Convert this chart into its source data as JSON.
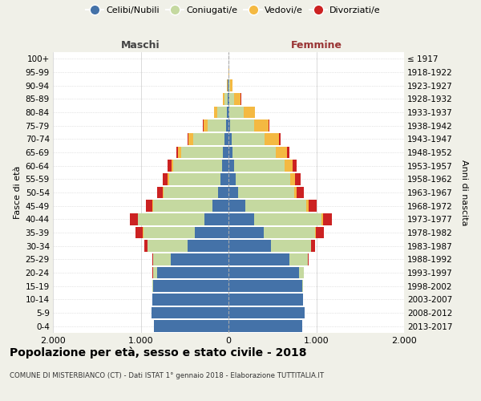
{
  "age_groups": [
    "0-4",
    "5-9",
    "10-14",
    "15-19",
    "20-24",
    "25-29",
    "30-34",
    "35-39",
    "40-44",
    "45-49",
    "50-54",
    "55-59",
    "60-64",
    "65-69",
    "70-74",
    "75-79",
    "80-84",
    "85-89",
    "90-94",
    "95-99",
    "100+"
  ],
  "birth_years": [
    "2013-2017",
    "2008-2012",
    "2003-2007",
    "1998-2002",
    "1993-1997",
    "1988-1992",
    "1983-1987",
    "1978-1982",
    "1973-1977",
    "1968-1972",
    "1963-1967",
    "1958-1962",
    "1953-1957",
    "1948-1952",
    "1943-1947",
    "1938-1942",
    "1933-1937",
    "1928-1932",
    "1923-1927",
    "1918-1922",
    "≤ 1917"
  ],
  "maschi": {
    "celibi": [
      850,
      880,
      870,
      860,
      810,
      660,
      470,
      380,
      270,
      180,
      120,
      90,
      70,
      60,
      50,
      25,
      15,
      8,
      5,
      1,
      0
    ],
    "coniugati": [
      0,
      0,
      0,
      5,
      50,
      200,
      450,
      590,
      760,
      680,
      620,
      590,
      560,
      480,
      350,
      210,
      110,
      40,
      8,
      2,
      0
    ],
    "vedovi": [
      0,
      0,
      0,
      0,
      2,
      2,
      3,
      5,
      5,
      5,
      5,
      10,
      20,
      35,
      55,
      45,
      35,
      18,
      5,
      0,
      0
    ],
    "divorziati": [
      0,
      0,
      0,
      0,
      5,
      10,
      40,
      80,
      90,
      80,
      70,
      60,
      40,
      20,
      15,
      10,
      5,
      0,
      0,
      0,
      0
    ]
  },
  "femmine": {
    "nubili": [
      840,
      870,
      850,
      840,
      800,
      690,
      480,
      400,
      290,
      190,
      110,
      80,
      60,
      50,
      35,
      18,
      10,
      5,
      3,
      1,
      0
    ],
    "coniugate": [
      0,
      0,
      0,
      5,
      55,
      210,
      460,
      590,
      770,
      700,
      640,
      620,
      580,
      490,
      380,
      270,
      160,
      60,
      12,
      2,
      0
    ],
    "vedove": [
      0,
      0,
      0,
      0,
      2,
      2,
      3,
      5,
      15,
      20,
      30,
      55,
      90,
      130,
      160,
      170,
      130,
      75,
      30,
      5,
      2
    ],
    "divorziate": [
      0,
      0,
      0,
      0,
      5,
      15,
      45,
      90,
      100,
      90,
      80,
      70,
      50,
      25,
      15,
      10,
      5,
      2,
      0,
      0,
      0
    ]
  },
  "colors": {
    "celibi": "#4472a8",
    "coniugati": "#c5d9a0",
    "vedovi": "#f4b942",
    "divorziati": "#cc2222"
  },
  "xlim": 2000,
  "title": "Popolazione per età, sesso e stato civile - 2018",
  "subtitle": "COMUNE DI MISTERBIANCO (CT) - Dati ISTAT 1° gennaio 2018 - Elaborazione TUTTITALIA.IT",
  "ylabel_left": "Fasce di età",
  "ylabel_right": "Anni di nascita",
  "xlabel_left": "Maschi",
  "xlabel_right": "Femmine",
  "bg_color": "#f0f0e8",
  "plot_bg": "#ffffff"
}
